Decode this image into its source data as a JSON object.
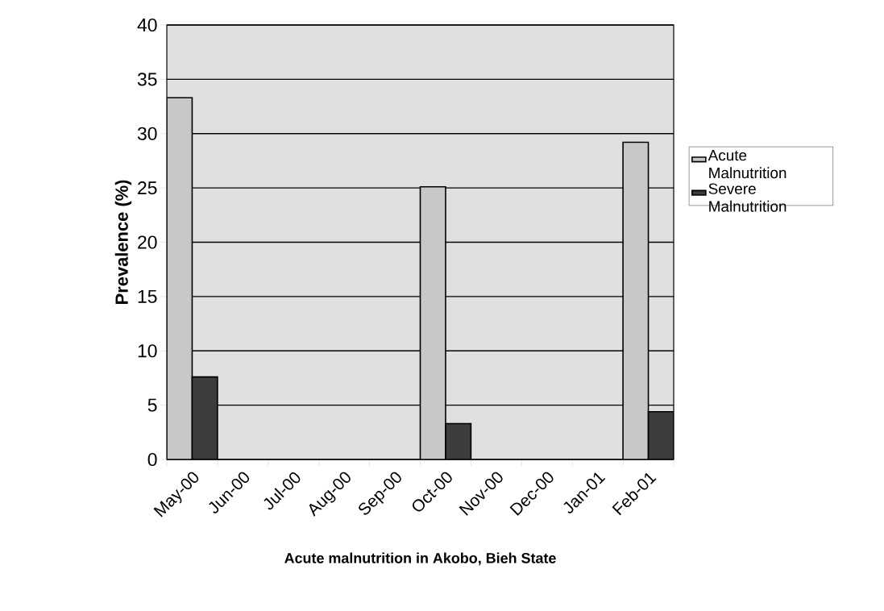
{
  "chart_data": {
    "type": "bar",
    "title": "Acute malnutrition in Akobo, Bieh State",
    "ylabel": "Prevalence  (%)",
    "categories": [
      "May-00",
      "Jun-00",
      "Jul-00",
      "Aug-00",
      "Sep-00",
      "Oct-00",
      "Nov-00",
      "Dec-00",
      "Jan-01",
      "Feb-01"
    ],
    "series": [
      {
        "name": "Acute Malnutrition",
        "color": "#c8c8c8",
        "values": [
          33.3,
          null,
          null,
          null,
          null,
          25.1,
          null,
          null,
          null,
          29.2
        ]
      },
      {
        "name": "Severe Malnutrition",
        "color": "#3c3c3c",
        "values": [
          7.6,
          null,
          null,
          null,
          null,
          3.3,
          null,
          null,
          null,
          4.4
        ]
      }
    ],
    "ylim": [
      0,
      40
    ],
    "yticks": [
      0,
      5,
      10,
      15,
      20,
      25,
      30,
      35,
      40
    ],
    "grid": "y",
    "legend": "right"
  }
}
